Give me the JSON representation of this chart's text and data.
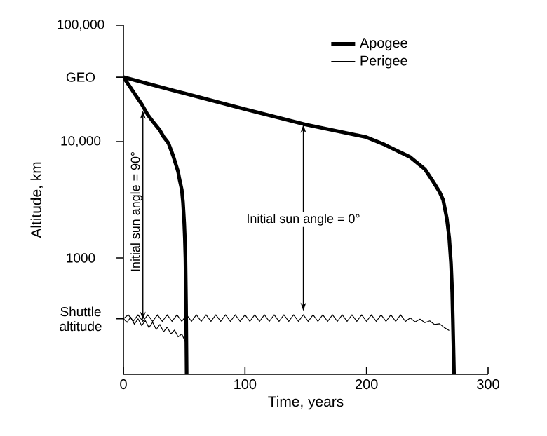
{
  "chart_data": {
    "type": "line",
    "xlabel": "Time, years",
    "ylabel": "Altitude, km",
    "log": true,
    "xlim": [
      0,
      300
    ],
    "xticks": [
      0,
      100,
      200,
      300
    ],
    "ylim": [
      100,
      100000
    ],
    "yticks": [
      {
        "value": 100000,
        "label": "100,000"
      },
      {
        "value": 35786,
        "label": "GEO"
      },
      {
        "value": 10000,
        "label": "10,000"
      },
      {
        "value": 1000,
        "label": "1000"
      },
      {
        "value": 300,
        "label": "Shuttle altitude"
      }
    ],
    "legend": "top right",
    "annotations": [
      {
        "text": "Initial sun angle = 0°",
        "x": 148,
        "y": 14000
      },
      {
        "text": "Initial sun angle = 90°",
        "x": 16,
        "y": 18500
      }
    ],
    "series": [
      {
        "name": "Apogee",
        "color": "#000000",
        "x": [
          0,
          50,
          100,
          150,
          200,
          215,
          236,
          248,
          255,
          260,
          263,
          266,
          268,
          269.5,
          270.5,
          271,
          272
        ],
        "values": [
          35786,
          26000,
          19000,
          14000,
          10900,
          9400,
          7350,
          5800,
          4500,
          3700,
          3160,
          2200,
          1500,
          900,
          500,
          300,
          100
        ]
      },
      {
        "name": "Perigee",
        "color": "#000000",
        "x": [
          0,
          4,
          8,
          12,
          16,
          20,
          24,
          28,
          32,
          36,
          40,
          44,
          48,
          52,
          56,
          60,
          64,
          68,
          72,
          76,
          80,
          84,
          88,
          92,
          96,
          100,
          104,
          108,
          112,
          116,
          120,
          124,
          128,
          132,
          136,
          140,
          144,
          148,
          152,
          156,
          160,
          164,
          168,
          172,
          176,
          180,
          184,
          188,
          192,
          196,
          200,
          204,
          208,
          212,
          216,
          220,
          224,
          228,
          232,
          236,
          240,
          244,
          248,
          252,
          256,
          260,
          264,
          268
        ],
        "values": [
          300,
          325,
          285,
          325,
          285,
          325,
          285,
          325,
          285,
          325,
          285,
          325,
          285,
          325,
          285,
          325,
          285,
          325,
          285,
          325,
          285,
          325,
          285,
          325,
          285,
          325,
          285,
          325,
          285,
          325,
          285,
          325,
          285,
          325,
          285,
          325,
          285,
          325,
          285,
          325,
          285,
          325,
          285,
          325,
          285,
          325,
          285,
          325,
          285,
          325,
          285,
          325,
          285,
          325,
          285,
          325,
          285,
          325,
          285,
          305,
          282,
          298,
          278,
          288,
          268,
          272,
          252,
          238
        ]
      },
      {
        "color": "#000000",
        "x": [
          0,
          5,
          10,
          15,
          20,
          25,
          30,
          33,
          37,
          41,
          45,
          46,
          48,
          49,
          50,
          50.5,
          51,
          51.5,
          52
        ],
        "values": [
          35786,
          30000,
          25000,
          21000,
          17000,
          14500,
          12500,
          11000,
          9700,
          7500,
          5500,
          4800,
          3850,
          3000,
          2000,
          1500,
          1000,
          400,
          100
        ]
      },
      {
        "color": "#000000",
        "x": [
          0,
          3,
          6,
          9,
          12,
          15,
          18,
          21,
          24,
          27,
          30,
          33,
          36,
          39,
          42,
          45,
          48,
          51
        ],
        "values": [
          300,
          280,
          310,
          270,
          300,
          262,
          290,
          252,
          280,
          243,
          268,
          232,
          255,
          222,
          240,
          210,
          222,
          190
        ]
      }
    ]
  }
}
